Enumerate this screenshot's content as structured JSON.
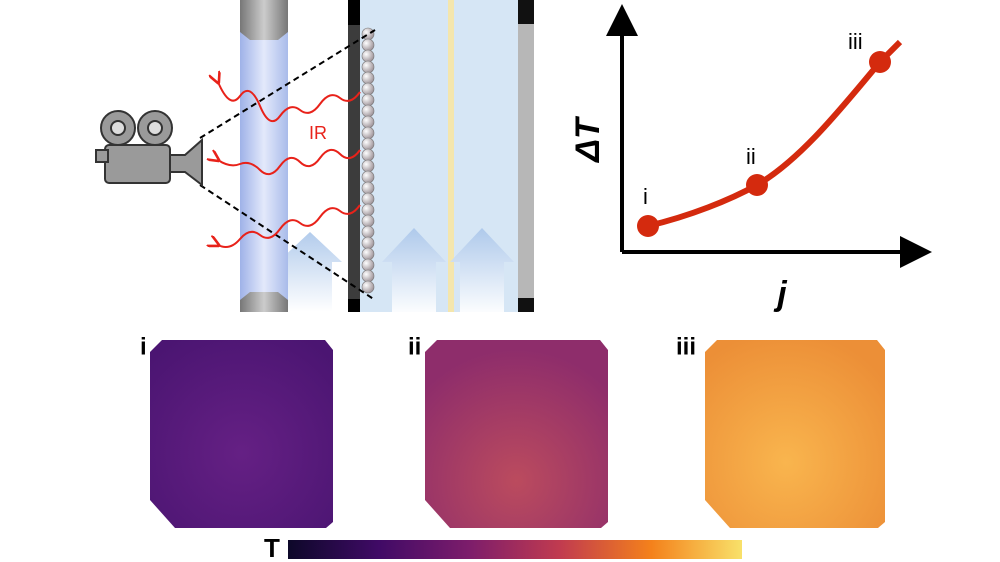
{
  "diagram": {
    "ir_label": "IR",
    "graph": {
      "y_axis_label": "ΔT",
      "x_axis_label": "j",
      "point_labels": [
        "i",
        "ii",
        "iii"
      ]
    },
    "panels": [
      {
        "label": "i"
      },
      {
        "label": "ii"
      },
      {
        "label": "iii"
      }
    ],
    "colorbar": {
      "label": "T"
    }
  }
}
